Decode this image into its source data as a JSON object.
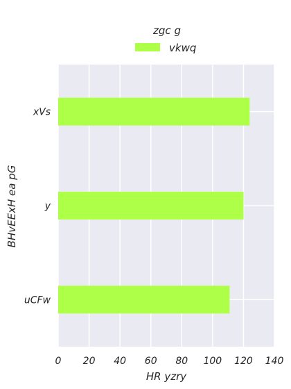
{
  "chart_data": {
    "type": "bar",
    "orientation": "horizontal",
    "title": "",
    "xlabel": "HR yzry",
    "ylabel": "BHvEExH ea pG",
    "categories": [
      "xVs",
      "y",
      "uCFw"
    ],
    "series": [
      {
        "name": "vkwq",
        "values": [
          124,
          120,
          111
        ],
        "color": "#adff48"
      }
    ],
    "xlim": [
      0,
      140
    ],
    "xticks": [
      0,
      20,
      40,
      60,
      80,
      100,
      120,
      140
    ],
    "grid": true,
    "legend": {
      "title": "zgc g",
      "placement": "top-center"
    },
    "colors": {
      "plot_background": "#eaeaf2",
      "grid": "#ffffff"
    }
  }
}
